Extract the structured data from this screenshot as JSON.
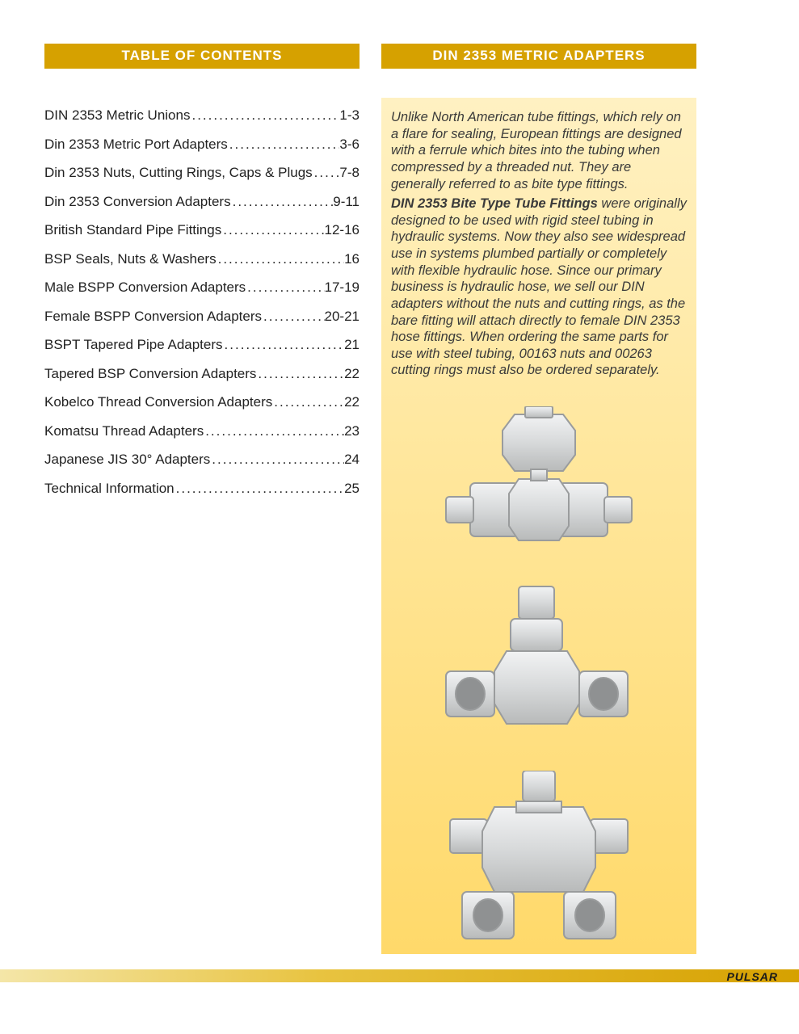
{
  "colors": {
    "header_bar_bg": "#d6a100",
    "header_bar_text": "#ffffff",
    "page_bg": "#ffffff",
    "right_box_gradient_top": "#fff1c2",
    "right_box_gradient_bottom": "#ffd96a",
    "body_text": "#222222",
    "intro_text": "#3a3a3a",
    "footer_gradient_left": "#f4e6a8",
    "footer_gradient_mid": "#e8c340",
    "footer_gradient_right": "#d6a100",
    "brand_text": "#1a1a1a",
    "fitting_fill": "#d7d9da",
    "fitting_stroke": "#9a9c9d",
    "fitting_highlight": "#f2f3f4"
  },
  "left": {
    "header": "TABLE OF CONTENTS",
    "toc": [
      {
        "label": "DIN 2353 Metric Unions",
        "page": "1-3"
      },
      {
        "label": "Din 2353 Metric Port Adapters",
        "page": "3-6"
      },
      {
        "label": "Din 2353 Nuts, Cutting Rings, Caps & Plugs",
        "page": "7-8"
      },
      {
        "label": "Din 2353 Conversion Adapters",
        "page": "9-11"
      },
      {
        "label": "British Standard Pipe Fittings",
        "page": "12-16"
      },
      {
        "label": "BSP Seals, Nuts & Washers",
        "page": "16"
      },
      {
        "label": "Male BSPP Conversion Adapters",
        "page": "17-19"
      },
      {
        "label": "Female BSPP Conversion Adapters",
        "page": "20-21"
      },
      {
        "label": "BSPT Tapered Pipe Adapters",
        "page": "21"
      },
      {
        "label": "Tapered BSP Conversion Adapters",
        "page": "22"
      },
      {
        "label": "Kobelco Thread Conversion Adapters",
        "page": "22"
      },
      {
        "label": "Komatsu Thread Adapters",
        "page": "23"
      },
      {
        "label": "Japanese JIS 30° Adapters",
        "page": "24"
      },
      {
        "label": "Technical Information",
        "page": "25"
      }
    ]
  },
  "right": {
    "header": "DIN 2353 METRIC ADAPTERS",
    "intro_p1": "Unlike North American tube fittings, which rely on a flare for sealing, European fittings are designed with a ferrule which bites into the tubing when compressed by a threaded nut. They are generally referred to as bite type fittings.",
    "intro_p2_bold": "DIN 2353 Bite Type Tube Fittings",
    "intro_p2_rest": " were originally designed to be used with rigid steel tubing in hydraulic systems. Now they also see widespread use in systems plumbed partially or completely with flexible hydraulic hose. Since our primary business is hydraulic hose, we sell our DIN adapters without the nuts and cutting rings, as the bare fitting will attach directly to female DIN 2353 hose fittings. When ordering the same parts for use with steel tubing, 00163 nuts and 00263 cutting rings must also be ordered separately."
  },
  "footer": {
    "brand": "PULSAR"
  }
}
